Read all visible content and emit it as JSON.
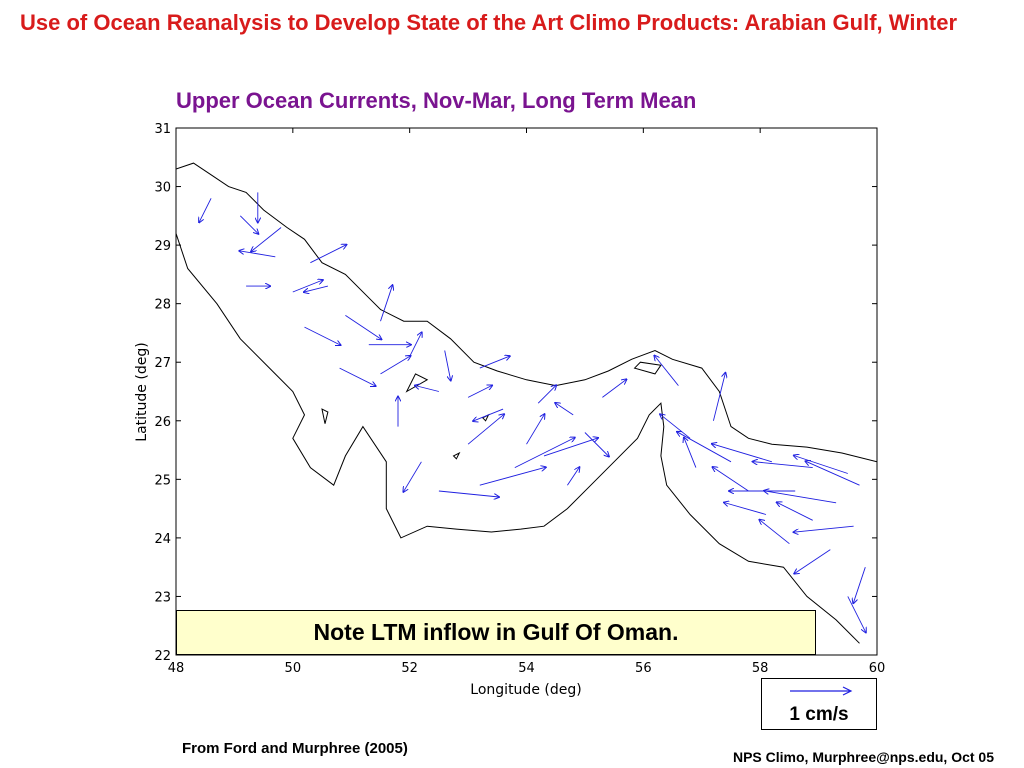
{
  "slide": {
    "title": "Use of Ocean Reanalysis to Develop State of the Art Climo Products: Arabian Gulf, Winter",
    "map_title": "Upper Ocean Currents, Nov-Mar, Long Term Mean",
    "note": "Note LTM inflow in Gulf Of Oman.",
    "scale_label": "1 cm/s",
    "footer_left": "From Ford and Murphree (2005)",
    "footer_right": "NPS Climo, Murphree@nps.edu, Oct 05"
  },
  "colors": {
    "title": "#d81b1b",
    "map_title": "#7a1490",
    "vectors": "#1f1fe0",
    "coast": "#000000",
    "note_bg": "#ffffcc"
  },
  "chart_data": {
    "type": "vector-map",
    "xlabel": "Longitude (deg)",
    "ylabel": "Latitude (deg)",
    "xlim": [
      48,
      60
    ],
    "ylim": [
      22,
      31
    ],
    "xticks": [
      48,
      50,
      52,
      54,
      56,
      58,
      60
    ],
    "yticks": [
      22,
      23,
      24,
      25,
      26,
      27,
      28,
      29,
      30,
      31
    ],
    "grid": false,
    "coastline": {
      "mainland": [
        [
          48.0,
          30.3
        ],
        [
          48.3,
          30.4
        ],
        [
          48.6,
          30.2
        ],
        [
          48.9,
          30.0
        ],
        [
          49.2,
          29.9
        ],
        [
          49.5,
          29.6
        ],
        [
          49.9,
          29.3
        ],
        [
          50.2,
          29.1
        ],
        [
          50.5,
          28.7
        ],
        [
          50.9,
          28.5
        ],
        [
          51.3,
          28.1
        ],
        [
          51.5,
          27.9
        ],
        [
          51.9,
          27.7
        ],
        [
          52.3,
          27.7
        ],
        [
          52.7,
          27.4
        ],
        [
          53.1,
          27.0
        ],
        [
          53.5,
          26.85
        ],
        [
          54.0,
          26.7
        ],
        [
          54.5,
          26.6
        ],
        [
          55.0,
          26.7
        ],
        [
          55.4,
          26.85
        ],
        [
          55.8,
          27.05
        ],
        [
          56.2,
          27.2
        ],
        [
          56.5,
          27.05
        ],
        [
          57.0,
          26.9
        ],
        [
          57.3,
          26.5
        ],
        [
          57.5,
          25.9
        ],
        [
          57.8,
          25.7
        ],
        [
          58.2,
          25.6
        ],
        [
          58.8,
          25.55
        ],
        [
          59.4,
          25.45
        ],
        [
          60.0,
          25.3
        ]
      ],
      "southern": [
        [
          48.0,
          29.2
        ],
        [
          48.2,
          28.6
        ],
        [
          48.7,
          28.0
        ],
        [
          49.1,
          27.4
        ],
        [
          49.6,
          26.9
        ],
        [
          50.0,
          26.5
        ],
        [
          50.2,
          26.1
        ],
        [
          50.0,
          25.7
        ],
        [
          50.3,
          25.2
        ],
        [
          50.7,
          24.9
        ],
        [
          50.9,
          25.4
        ],
        [
          51.2,
          25.9
        ],
        [
          51.6,
          25.3
        ],
        [
          51.6,
          24.5
        ],
        [
          51.85,
          24.0
        ],
        [
          52.3,
          24.2
        ],
        [
          52.8,
          24.15
        ],
        [
          53.4,
          24.1
        ],
        [
          53.9,
          24.15
        ],
        [
          54.3,
          24.2
        ],
        [
          54.7,
          24.5
        ],
        [
          55.1,
          24.9
        ],
        [
          55.5,
          25.3
        ],
        [
          55.9,
          25.7
        ],
        [
          56.1,
          26.1
        ],
        [
          56.3,
          26.3
        ],
        [
          56.35,
          25.9
        ],
        [
          56.3,
          25.4
        ],
        [
          56.4,
          24.9
        ],
        [
          56.8,
          24.4
        ],
        [
          57.3,
          23.9
        ],
        [
          57.8,
          23.6
        ],
        [
          58.4,
          23.5
        ],
        [
          58.8,
          23.0
        ],
        [
          59.3,
          22.6
        ],
        [
          59.7,
          22.2
        ]
      ],
      "islands": [
        [
          [
            51.95,
            26.5
          ],
          [
            52.3,
            26.7
          ],
          [
            52.1,
            26.8
          ]
        ],
        [
          [
            55.85,
            26.9
          ],
          [
            56.2,
            26.8
          ],
          [
            56.3,
            26.95
          ],
          [
            55.95,
            27.0
          ]
        ],
        [
          [
            53.25,
            26.05
          ],
          [
            53.35,
            26.1
          ],
          [
            53.3,
            26.0
          ]
        ],
        [
          [
            52.75,
            25.4
          ],
          [
            52.85,
            25.45
          ],
          [
            52.8,
            25.35
          ]
        ],
        [
          [
            50.5,
            26.2
          ],
          [
            50.6,
            26.15
          ],
          [
            50.55,
            25.95
          ]
        ]
      ]
    },
    "vectors": [
      {
        "lon": 48.6,
        "lat": 29.8,
        "u": -0.2,
        "v": -0.4
      },
      {
        "lon": 49.1,
        "lat": 29.5,
        "u": 0.3,
        "v": -0.3
      },
      {
        "lon": 49.4,
        "lat": 29.9,
        "u": 0.0,
        "v": -0.5
      },
      {
        "lon": 49.8,
        "lat": 29.3,
        "u": -0.5,
        "v": -0.4
      },
      {
        "lon": 50.3,
        "lat": 28.7,
        "u": 0.6,
        "v": 0.3
      },
      {
        "lon": 49.7,
        "lat": 28.8,
        "u": -0.6,
        "v": 0.1
      },
      {
        "lon": 49.2,
        "lat": 28.3,
        "u": 0.4,
        "v": 0.0
      },
      {
        "lon": 50.0,
        "lat": 28.2,
        "u": 0.5,
        "v": 0.2
      },
      {
        "lon": 50.6,
        "lat": 28.3,
        "u": -0.4,
        "v": -0.1
      },
      {
        "lon": 50.9,
        "lat": 27.8,
        "u": 0.6,
        "v": -0.4
      },
      {
        "lon": 50.2,
        "lat": 27.6,
        "u": 0.6,
        "v": -0.3
      },
      {
        "lon": 51.3,
        "lat": 27.3,
        "u": 0.7,
        "v": 0.0
      },
      {
        "lon": 51.5,
        "lat": 27.7,
        "u": 0.2,
        "v": 0.6
      },
      {
        "lon": 50.8,
        "lat": 26.9,
        "u": 0.6,
        "v": -0.3
      },
      {
        "lon": 51.5,
        "lat": 26.8,
        "u": 0.5,
        "v": 0.3
      },
      {
        "lon": 52.0,
        "lat": 27.1,
        "u": 0.2,
        "v": 0.4
      },
      {
        "lon": 52.6,
        "lat": 27.2,
        "u": 0.1,
        "v": -0.5
      },
      {
        "lon": 53.2,
        "lat": 26.9,
        "u": 0.5,
        "v": 0.2
      },
      {
        "lon": 52.5,
        "lat": 26.5,
        "u": -0.4,
        "v": 0.1
      },
      {
        "lon": 53.0,
        "lat": 26.4,
        "u": 0.4,
        "v": 0.2
      },
      {
        "lon": 53.6,
        "lat": 26.2,
        "u": -0.5,
        "v": -0.2
      },
      {
        "lon": 54.2,
        "lat": 26.3,
        "u": 0.3,
        "v": 0.3
      },
      {
        "lon": 54.8,
        "lat": 26.1,
        "u": -0.3,
        "v": 0.2
      },
      {
        "lon": 55.3,
        "lat": 26.4,
        "u": 0.4,
        "v": 0.3
      },
      {
        "lon": 51.8,
        "lat": 25.9,
        "u": 0.0,
        "v": 0.5
      },
      {
        "lon": 52.2,
        "lat": 25.3,
        "u": -0.3,
        "v": -0.5
      },
      {
        "lon": 52.5,
        "lat": 24.8,
        "u": 1.0,
        "v": -0.1
      },
      {
        "lon": 53.2,
        "lat": 24.9,
        "u": 1.1,
        "v": 0.3
      },
      {
        "lon": 53.8,
        "lat": 25.2,
        "u": 1.0,
        "v": 0.5
      },
      {
        "lon": 54.3,
        "lat": 25.4,
        "u": 0.9,
        "v": 0.3
      },
      {
        "lon": 53.0,
        "lat": 25.6,
        "u": 0.6,
        "v": 0.5
      },
      {
        "lon": 54.0,
        "lat": 25.6,
        "u": 0.3,
        "v": 0.5
      },
      {
        "lon": 55.0,
        "lat": 25.8,
        "u": 0.4,
        "v": -0.4
      },
      {
        "lon": 54.7,
        "lat": 24.9,
        "u": 0.2,
        "v": 0.3
      },
      {
        "lon": 56.6,
        "lat": 26.6,
        "u": -0.4,
        "v": 0.5
      },
      {
        "lon": 57.2,
        "lat": 26.0,
        "u": 0.2,
        "v": 0.8
      },
      {
        "lon": 56.8,
        "lat": 25.7,
        "u": -0.5,
        "v": 0.4
      },
      {
        "lon": 56.9,
        "lat": 25.2,
        "u": -0.2,
        "v": 0.5
      },
      {
        "lon": 57.5,
        "lat": 25.3,
        "u": -0.9,
        "v": 0.5
      },
      {
        "lon": 58.2,
        "lat": 25.3,
        "u": -1.0,
        "v": 0.3
      },
      {
        "lon": 58.9,
        "lat": 25.2,
        "u": -1.0,
        "v": 0.1
      },
      {
        "lon": 59.5,
        "lat": 25.1,
        "u": -0.9,
        "v": 0.3
      },
      {
        "lon": 57.8,
        "lat": 24.8,
        "u": -0.6,
        "v": 0.4
      },
      {
        "lon": 58.6,
        "lat": 24.8,
        "u": -1.1,
        "v": 0.0
      },
      {
        "lon": 59.3,
        "lat": 24.6,
        "u": -1.2,
        "v": 0.2
      },
      {
        "lon": 59.7,
        "lat": 24.9,
        "u": -0.9,
        "v": 0.4
      },
      {
        "lon": 58.1,
        "lat": 24.4,
        "u": -0.7,
        "v": 0.2
      },
      {
        "lon": 58.9,
        "lat": 24.3,
        "u": -0.6,
        "v": 0.3
      },
      {
        "lon": 59.6,
        "lat": 24.2,
        "u": -1.0,
        "v": -0.1
      },
      {
        "lon": 58.5,
        "lat": 23.9,
        "u": -0.5,
        "v": 0.4
      },
      {
        "lon": 59.2,
        "lat": 23.8,
        "u": -0.6,
        "v": -0.4
      },
      {
        "lon": 59.8,
        "lat": 23.5,
        "u": -0.2,
        "v": -0.6
      },
      {
        "lon": 59.5,
        "lat": 23.0,
        "u": 0.3,
        "v": -0.6
      }
    ]
  }
}
